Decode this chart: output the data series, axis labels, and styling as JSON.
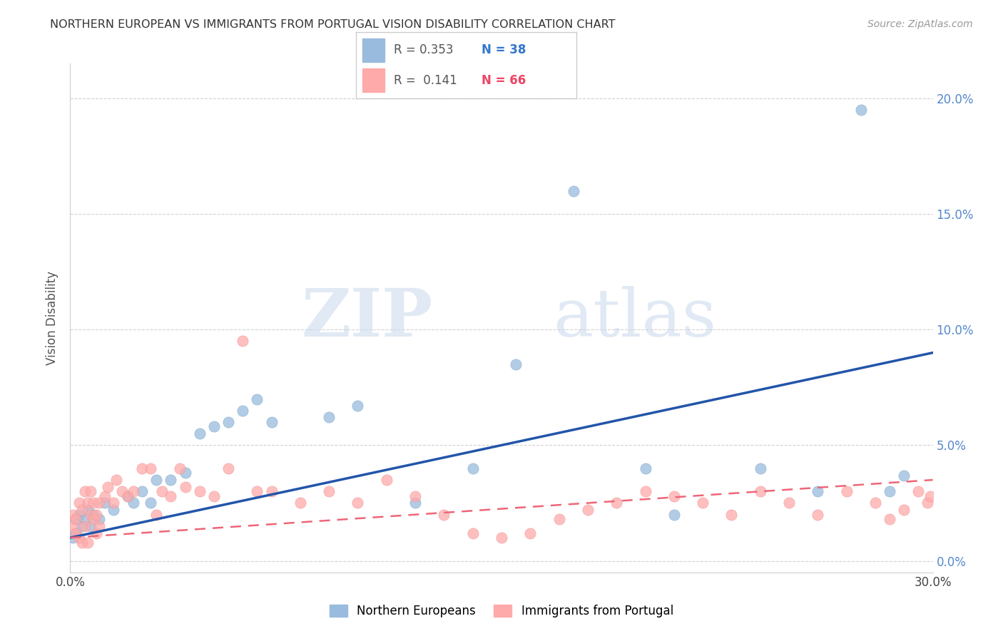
{
  "title": "NORTHERN EUROPEAN VS IMMIGRANTS FROM PORTUGAL VISION DISABILITY CORRELATION CHART",
  "source": "Source: ZipAtlas.com",
  "ylabel": "Vision Disability",
  "xlim": [
    0.0,
    0.3
  ],
  "ylim": [
    -0.005,
    0.215
  ],
  "xticks": [
    0.0,
    0.05,
    0.1,
    0.15,
    0.2,
    0.25,
    0.3
  ],
  "yticks": [
    0.0,
    0.05,
    0.1,
    0.15,
    0.2
  ],
  "xtick_labels": [
    "0.0%",
    "",
    "",
    "",
    "",
    "",
    "30.0%"
  ],
  "ytick_labels_right": [
    "0.0%",
    "5.0%",
    "10.0%",
    "15.0%",
    "20.0%"
  ],
  "blue_color": "#99BBDD",
  "pink_color": "#FFAAAA",
  "blue_line_color": "#2255AA",
  "pink_line_color": "#EE6677",
  "R_blue": 0.353,
  "N_blue": 38,
  "R_pink": 0.141,
  "N_pink": 66,
  "legend_label_blue": "Northern Europeans",
  "legend_label_pink": "Immigrants from Portugal",
  "watermark_zip": "ZIP",
  "watermark_atlas": "atlas",
  "blue_x": [
    0.001,
    0.002,
    0.002,
    0.003,
    0.004,
    0.005,
    0.006,
    0.007,
    0.008,
    0.01,
    0.012,
    0.015,
    0.02,
    0.022,
    0.025,
    0.028,
    0.03,
    0.035,
    0.04,
    0.045,
    0.05,
    0.055,
    0.06,
    0.065,
    0.07,
    0.09,
    0.1,
    0.12,
    0.14,
    0.155,
    0.175,
    0.2,
    0.21,
    0.24,
    0.26,
    0.275,
    0.285,
    0.29
  ],
  "blue_y": [
    0.01,
    0.018,
    0.012,
    0.02,
    0.015,
    0.018,
    0.022,
    0.015,
    0.02,
    0.018,
    0.025,
    0.022,
    0.028,
    0.025,
    0.03,
    0.025,
    0.035,
    0.035,
    0.038,
    0.055,
    0.058,
    0.06,
    0.065,
    0.07,
    0.06,
    0.062,
    0.067,
    0.025,
    0.04,
    0.085,
    0.16,
    0.04,
    0.02,
    0.04,
    0.03,
    0.195,
    0.03,
    0.037
  ],
  "pink_x": [
    0.001,
    0.001,
    0.002,
    0.002,
    0.003,
    0.003,
    0.004,
    0.004,
    0.005,
    0.005,
    0.006,
    0.006,
    0.007,
    0.007,
    0.008,
    0.008,
    0.009,
    0.009,
    0.01,
    0.01,
    0.012,
    0.013,
    0.015,
    0.016,
    0.018,
    0.02,
    0.022,
    0.025,
    0.028,
    0.03,
    0.032,
    0.035,
    0.038,
    0.04,
    0.045,
    0.05,
    0.055,
    0.06,
    0.065,
    0.07,
    0.08,
    0.09,
    0.1,
    0.11,
    0.12,
    0.13,
    0.14,
    0.15,
    0.16,
    0.17,
    0.18,
    0.19,
    0.2,
    0.21,
    0.22,
    0.23,
    0.24,
    0.25,
    0.26,
    0.27,
    0.28,
    0.285,
    0.29,
    0.295,
    0.298,
    0.299
  ],
  "pink_y": [
    0.02,
    0.015,
    0.018,
    0.012,
    0.025,
    0.01,
    0.022,
    0.008,
    0.03,
    0.015,
    0.025,
    0.008,
    0.02,
    0.03,
    0.018,
    0.025,
    0.012,
    0.02,
    0.015,
    0.025,
    0.028,
    0.032,
    0.025,
    0.035,
    0.03,
    0.028,
    0.03,
    0.04,
    0.04,
    0.02,
    0.03,
    0.028,
    0.04,
    0.032,
    0.03,
    0.028,
    0.04,
    0.095,
    0.03,
    0.03,
    0.025,
    0.03,
    0.025,
    0.035,
    0.028,
    0.02,
    0.012,
    0.01,
    0.012,
    0.018,
    0.022,
    0.025,
    0.03,
    0.028,
    0.025,
    0.02,
    0.03,
    0.025,
    0.02,
    0.03,
    0.025,
    0.018,
    0.022,
    0.03,
    0.025,
    0.028
  ],
  "blue_line_x0": 0.0,
  "blue_line_y0": 0.01,
  "blue_line_x1": 0.3,
  "blue_line_y1": 0.09,
  "pink_line_x0": 0.0,
  "pink_line_y0": 0.01,
  "pink_line_x1": 0.3,
  "pink_line_y1": 0.035
}
